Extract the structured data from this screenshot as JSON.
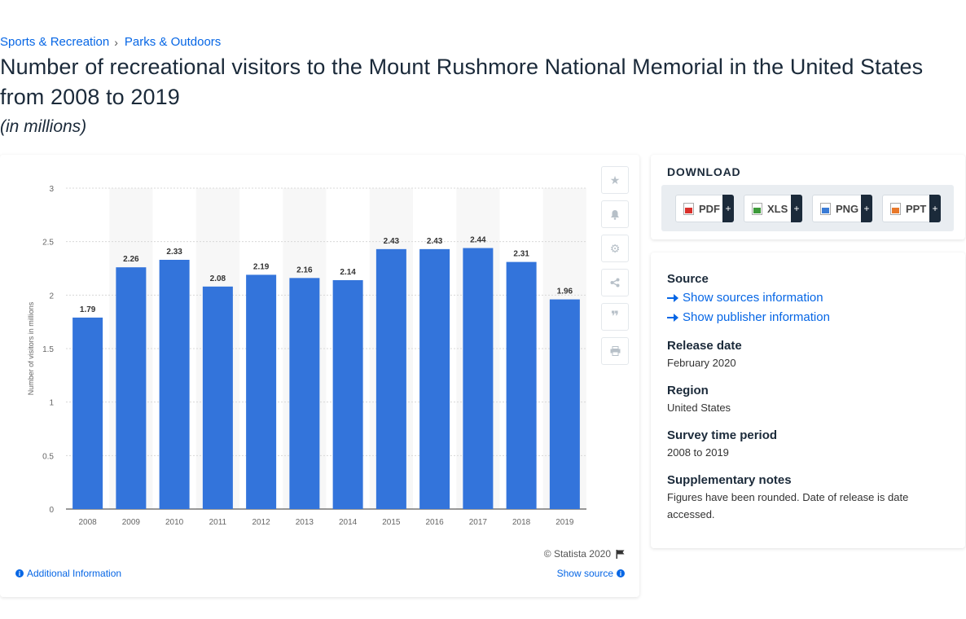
{
  "breadcrumb": {
    "items": [
      "Sports & Recreation",
      "Parks & Outdoors"
    ],
    "separator": "›"
  },
  "title": "Number of recreational visitors to the Mount Rushmore National Memorial in the United States from 2008 to 2019",
  "subtitle": "(in millions)",
  "chart_data": {
    "type": "bar",
    "categories": [
      "2008",
      "2009",
      "2010",
      "2011",
      "2012",
      "2013",
      "2014",
      "2015",
      "2016",
      "2017",
      "2018",
      "2019"
    ],
    "values": [
      1.79,
      2.26,
      2.33,
      2.08,
      2.19,
      2.16,
      2.14,
      2.43,
      2.43,
      2.44,
      2.31,
      1.96
    ],
    "data_labels": [
      "1.79",
      "2.26",
      "2.33",
      "2.08",
      "2.19",
      "2.16",
      "2.14",
      "2.43",
      "2.43",
      "2.44",
      "2.31",
      "1.96"
    ],
    "ylabel": "Number of visitors in millions",
    "xlabel": "",
    "ylim": [
      0,
      3
    ],
    "yticks": [
      "0",
      "0.5",
      "1",
      "1.5",
      "2",
      "2.5",
      "3"
    ],
    "grid": true,
    "bar_color": "#3374db",
    "alt_band_color": "#f7f7f7"
  },
  "chart_footer": {
    "copyright": "© Statista 2020",
    "additional_info": "Additional Information",
    "show_source": "Show source"
  },
  "tools": [
    "star-icon",
    "bell-icon",
    "gear-icon",
    "share-icon",
    "quote-icon",
    "print-icon"
  ],
  "download": {
    "title": "DOWNLOAD",
    "buttons": [
      {
        "label": "PDF",
        "color": "#d9302b"
      },
      {
        "label": "XLS",
        "color": "#3d9a3a"
      },
      {
        "label": "PNG",
        "color": "#3a7bd5"
      },
      {
        "label": "PPT",
        "color": "#e8782a"
      }
    ],
    "plus": "+"
  },
  "meta": {
    "source_label": "Source",
    "show_sources": "Show sources information",
    "show_publisher": "Show publisher information",
    "release_label": "Release date",
    "release_value": "February 2020",
    "region_label": "Region",
    "region_value": "United States",
    "period_label": "Survey time period",
    "period_value": "2008 to 2019",
    "notes_label": "Supplementary notes",
    "notes_value": "Figures have been rounded. Date of release is date accessed."
  }
}
